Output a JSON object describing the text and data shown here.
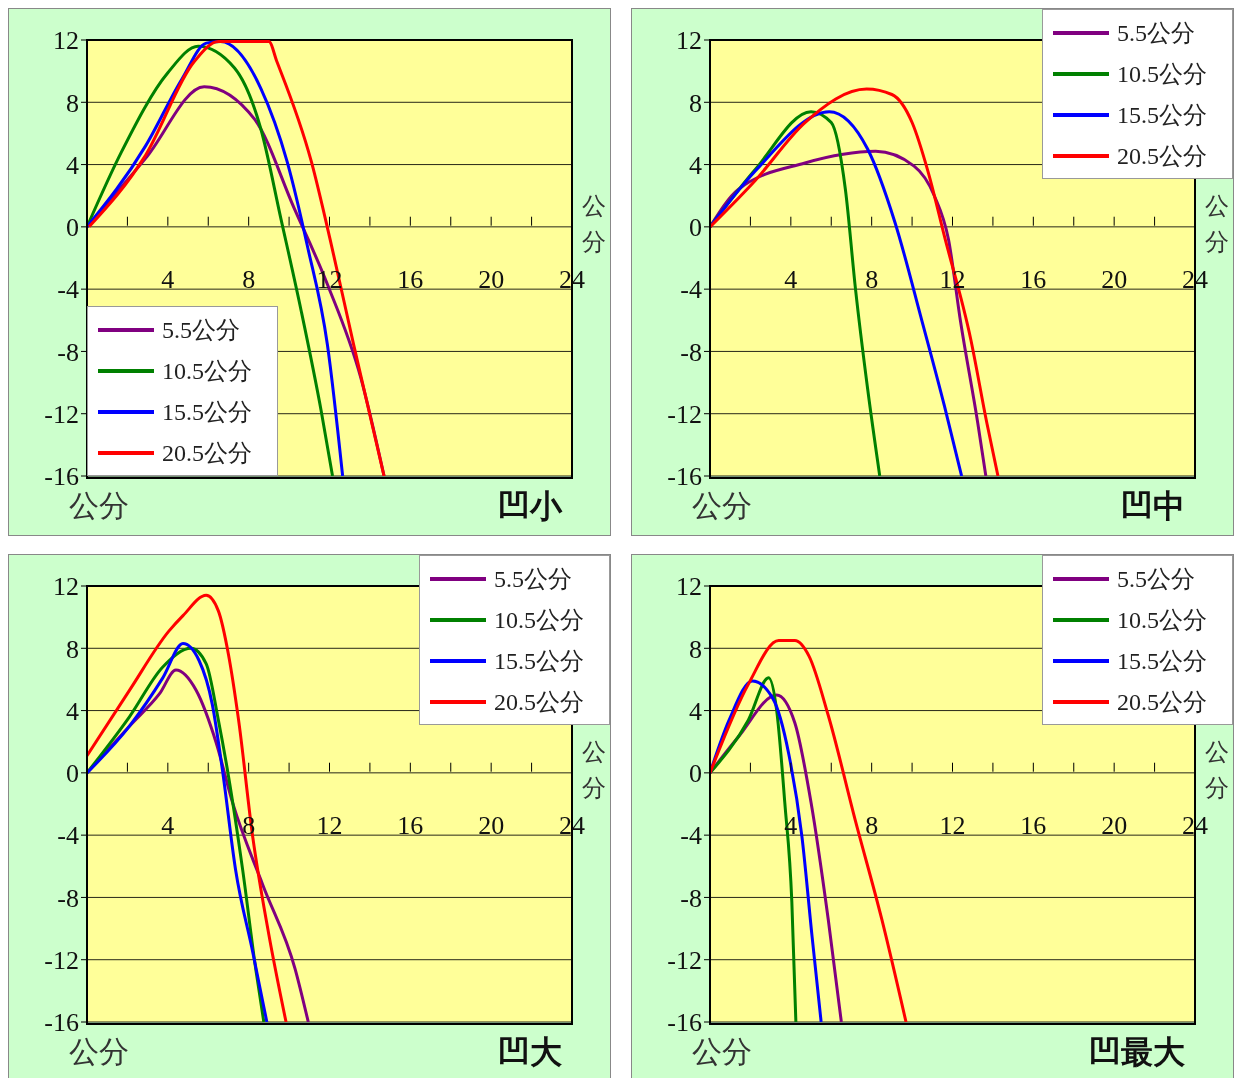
{
  "chart_data": [
    {
      "type": "line",
      "title": "凹小",
      "xlabel": "公分",
      "annotations": [
        "公分"
      ],
      "xlim": [
        0,
        24
      ],
      "xticks": [
        {
          "value": 2,
          "label": null
        },
        4,
        {
          "value": 6,
          "label": null
        },
        8,
        {
          "value": 10,
          "label": null
        },
        12,
        {
          "value": 14,
          "label": null
        },
        16,
        {
          "value": 18,
          "label": null
        },
        20,
        {
          "value": 22,
          "label": null
        },
        24
      ],
      "ylim": [
        -16,
        12
      ],
      "yticks": [
        -16,
        -12,
        -8,
        -4,
        0,
        4,
        8,
        12
      ],
      "grid": "y",
      "legend": "bottom left",
      "marker": "none",
      "line_style": "solid",
      "series": [
        {
          "name": "5.5公分",
          "color": "#800080",
          "x": [
            0,
            2.9,
            5.8,
            8.3,
            10.25,
            11.9,
            13.55,
            14.7
          ],
          "values": [
            0,
            4.4,
            9.0,
            6.9,
            1.2,
            -3.7,
            -9.7,
            -16
          ]
        },
        {
          "name": "10.5公分",
          "color": "#008000",
          "x": [
            0,
            1.7,
            4.0,
            5.5,
            7.3,
            8.6,
            9.6,
            10.6,
            11.6,
            12.15
          ],
          "values": [
            0,
            4.8,
            9.9,
            11.6,
            10.2,
            6.3,
            0.5,
            -5.4,
            -11.9,
            -16
          ]
        },
        {
          "name": "15.5公分",
          "color": "#0000ff",
          "x": [
            0,
            2.9,
            4.7,
            5.9,
            6.6,
            8.6,
            9.9,
            10.9,
            11.9,
            12.65
          ],
          "values": [
            0,
            5.2,
            9.5,
            11.8,
            11.9,
            8.9,
            4.2,
            -1.2,
            -7.6,
            -16
          ]
        },
        {
          "name": "20.5公分",
          "color": "#ff0000",
          "x": [
            0.1,
            2.9,
            5.3,
            6.5,
            9.0,
            9.4,
            11.1,
            12.1,
            13.2,
            14.7
          ],
          "values": [
            0,
            4.6,
            10.6,
            11.9,
            11.9,
            10.6,
            4.2,
            -1.2,
            -7.6,
            -16
          ]
        }
      ]
    },
    {
      "type": "line",
      "title": "凹中",
      "xlabel": "公分",
      "annotations": [
        "公分"
      ],
      "xlim": [
        0,
        24
      ],
      "xticks": [
        {
          "value": 2,
          "label": null
        },
        4,
        {
          "value": 6,
          "label": null
        },
        8,
        {
          "value": 10,
          "label": null
        },
        12,
        {
          "value": 14,
          "label": null
        },
        16,
        {
          "value": 18,
          "label": null
        },
        20,
        {
          "value": 22,
          "label": null
        },
        24
      ],
      "ylim": [
        -16,
        12
      ],
      "yticks": [
        -16,
        -12,
        -8,
        -4,
        0,
        4,
        8,
        12
      ],
      "grid": "y",
      "legend": "top right",
      "marker": "none",
      "line_style": "solid",
      "series": [
        {
          "name": "5.5公分",
          "color": "#800080",
          "x": [
            0,
            1.4,
            4.7,
            8.2,
            10.1,
            11.1,
            11.8,
            12.4,
            13.25,
            13.65
          ],
          "values": [
            0,
            2.4,
            4.1,
            4.85,
            3.9,
            2.0,
            -0.8,
            -6.1,
            -12.6,
            -16
          ]
        },
        {
          "name": "10.5公分",
          "color": "#008000",
          "x": [
            0,
            2.25,
            5.0,
            6.0,
            6.7,
            7.2,
            7.8,
            8.4
          ],
          "values": [
            0,
            3.7,
            7.4,
            6.7,
            2.4,
            -4.0,
            -10.4,
            -16
          ]
        },
        {
          "name": "15.5公分",
          "color": "#0000ff",
          "x": [
            0,
            2.25,
            5.9,
            7.8,
            9.15,
            10.5,
            11.6,
            12.45
          ],
          "values": [
            0,
            3.6,
            7.4,
            5.0,
            0.3,
            -6.1,
            -11.5,
            -16
          ]
        },
        {
          "name": "20.5公分",
          "color": "#ff0000",
          "x": [
            0,
            2.25,
            4.7,
            7.75,
            9.0,
            10.0,
            10.8,
            11.6,
            12.9,
            13.7,
            14.25
          ],
          "values": [
            0,
            3.0,
            6.7,
            8.85,
            8.5,
            6.7,
            3.5,
            -0.6,
            -7.2,
            -12.6,
            -16
          ]
        }
      ]
    },
    {
      "type": "line",
      "title": "凹大",
      "xlabel": "公分",
      "annotations": [
        "公分"
      ],
      "xlim": [
        0,
        24
      ],
      "xticks": [
        {
          "value": 2,
          "label": null
        },
        4,
        {
          "value": 6,
          "label": null
        },
        8,
        {
          "value": 10,
          "label": null
        },
        12,
        {
          "value": 14,
          "label": null
        },
        16,
        {
          "value": 18,
          "label": null
        },
        20,
        {
          "value": 22,
          "label": null
        },
        24
      ],
      "ylim": [
        -16,
        12
      ],
      "yticks": [
        -16,
        -12,
        -8,
        -4,
        0,
        4,
        8,
        12
      ],
      "grid": "y",
      "legend": "top right",
      "marker": "none",
      "line_style": "solid",
      "series": [
        {
          "name": "5.5公分",
          "color": "#800080",
          "x": [
            0,
            2.1,
            3.6,
            4.4,
            5.4,
            6.4,
            7.2,
            8.7,
            10.3,
            10.95
          ],
          "values": [
            0,
            3.0,
            5.1,
            6.6,
            5.3,
            1.9,
            -1.9,
            -7.2,
            -12.6,
            -16
          ]
        },
        {
          "name": "10.5公分",
          "color": "#008000",
          "x": [
            0,
            2.1,
            3.75,
            5.15,
            5.9,
            6.5,
            7.0,
            7.7,
            8.35,
            8.75
          ],
          "values": [
            0,
            3.6,
            6.8,
            8.0,
            7.0,
            3.4,
            -0.2,
            -6.2,
            -12.6,
            -16
          ]
        },
        {
          "name": "15.5公分",
          "color": "#0000ff",
          "x": [
            0,
            2.1,
            3.75,
            4.75,
            5.55,
            6.2,
            6.7,
            7.35,
            8.2,
            8.9
          ],
          "values": [
            0,
            3.0,
            6.1,
            8.3,
            7.2,
            4.4,
            0.2,
            -6.2,
            -11.5,
            -16
          ]
        },
        {
          "name": "20.5公分",
          "color": "#ff0000",
          "x": [
            0,
            2.1,
            4.05,
            4.75,
            5.9,
            6.5,
            7.0,
            7.5,
            8.2,
            9.0,
            9.85
          ],
          "values": [
            1.1,
            5.3,
            9.1,
            10.1,
            11.4,
            10.4,
            7.6,
            3.4,
            -4.1,
            -10.4,
            -16
          ]
        }
      ]
    },
    {
      "type": "line",
      "title": "凹最大",
      "xlabel": "公分",
      "annotations": [
        "公分"
      ],
      "xlim": [
        0,
        24
      ],
      "xticks": [
        {
          "value": 2,
          "label": null
        },
        4,
        {
          "value": 6,
          "label": null
        },
        8,
        {
          "value": 10,
          "label": null
        },
        12,
        {
          "value": 14,
          "label": null
        },
        16,
        {
          "value": 18,
          "label": null
        },
        20,
        {
          "value": 22,
          "label": null
        },
        24
      ],
      "ylim": [
        -16,
        12
      ],
      "yticks": [
        -16,
        -12,
        -8,
        -4,
        0,
        4,
        8,
        12
      ],
      "grid": "y",
      "legend": "top right",
      "marker": "none",
      "line_style": "solid",
      "series": [
        {
          "name": "5.5公分",
          "color": "#800080",
          "x": [
            0,
            1.4,
            3.3,
            4.2,
            5.0,
            5.85,
            6.5
          ],
          "values": [
            0,
            2.3,
            5.0,
            3.2,
            -1.9,
            -9.4,
            -16
          ]
        },
        {
          "name": "10.5公分",
          "color": "#008000",
          "x": [
            0,
            1.9,
            2.9,
            3.3,
            3.7,
            4.05,
            4.25
          ],
          "values": [
            0,
            3.4,
            6.1,
            4.0,
            -1.9,
            -8.3,
            -16
          ]
        },
        {
          "name": "15.5公分",
          "color": "#0000ff",
          "x": [
            0,
            0.95,
            2.1,
            3.1,
            3.9,
            4.55,
            5.05,
            5.5
          ],
          "values": [
            0,
            3.4,
            5.9,
            4.8,
            1.2,
            -4.1,
            -10.5,
            -16
          ]
        },
        {
          "name": "20.5公分",
          "color": "#ff0000",
          "x": [
            0,
            1.9,
            3.4,
            4.2,
            4.9,
            5.85,
            7.2,
            8.5,
            9.7
          ],
          "values": [
            0,
            5.7,
            8.5,
            8.5,
            7.5,
            3.7,
            -3.1,
            -9.4,
            -16
          ]
        }
      ]
    }
  ]
}
